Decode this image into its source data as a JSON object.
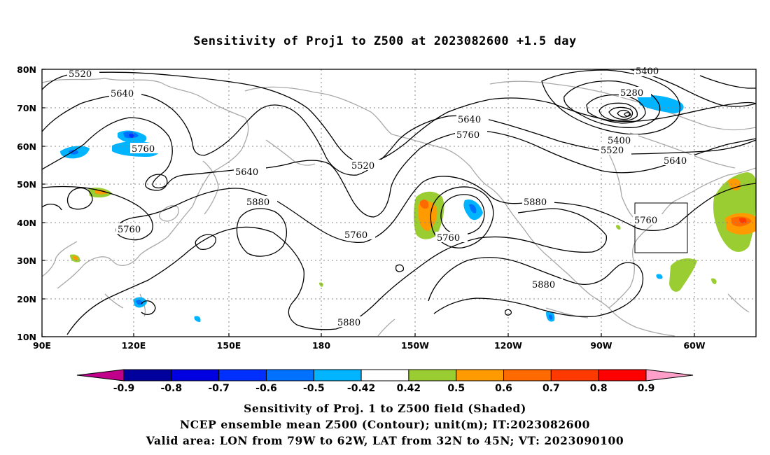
{
  "title": "Sensitivity of Proj1 to Z500 at 2023082600 +1.5 day",
  "axes": {
    "lon_labels": [
      "90E",
      "120E",
      "150E",
      "180",
      "150W",
      "120W",
      "90W",
      "60W"
    ],
    "lat_labels": [
      "80N",
      "70N",
      "60N",
      "50N",
      "40N",
      "30N",
      "20N",
      "10N"
    ]
  },
  "contour_labels": [
    "5520",
    "5640",
    "5760",
    "5880",
    "5280",
    "5400"
  ],
  "colorbar": {
    "labels": [
      "-0.9",
      "-0.8",
      "-0.7",
      "-0.6",
      "-0.5",
      "-0.42",
      "0.42",
      "0.5",
      "0.6",
      "0.7",
      "0.8",
      "0.9"
    ],
    "colors": [
      "#c0008a",
      "#00009c",
      "#0000e0",
      "#0030ff",
      "#0070ff",
      "#00b4ff",
      "#ffffff",
      "#9acd32",
      "#ff9a00",
      "#ff6a00",
      "#ff3a00",
      "#ff0000",
      "#ff9ec8"
    ]
  },
  "captions": {
    "line1": "Sensitivity of Proj. 1 to Z500 field (Shaded)",
    "line2": "NCEP ensemble mean Z500 (Contour); unit(m); IT:2023082600",
    "line3": "Valid area: LON from 79W to 62W, LAT from 32N to 45N; VT: 2023090100"
  }
}
